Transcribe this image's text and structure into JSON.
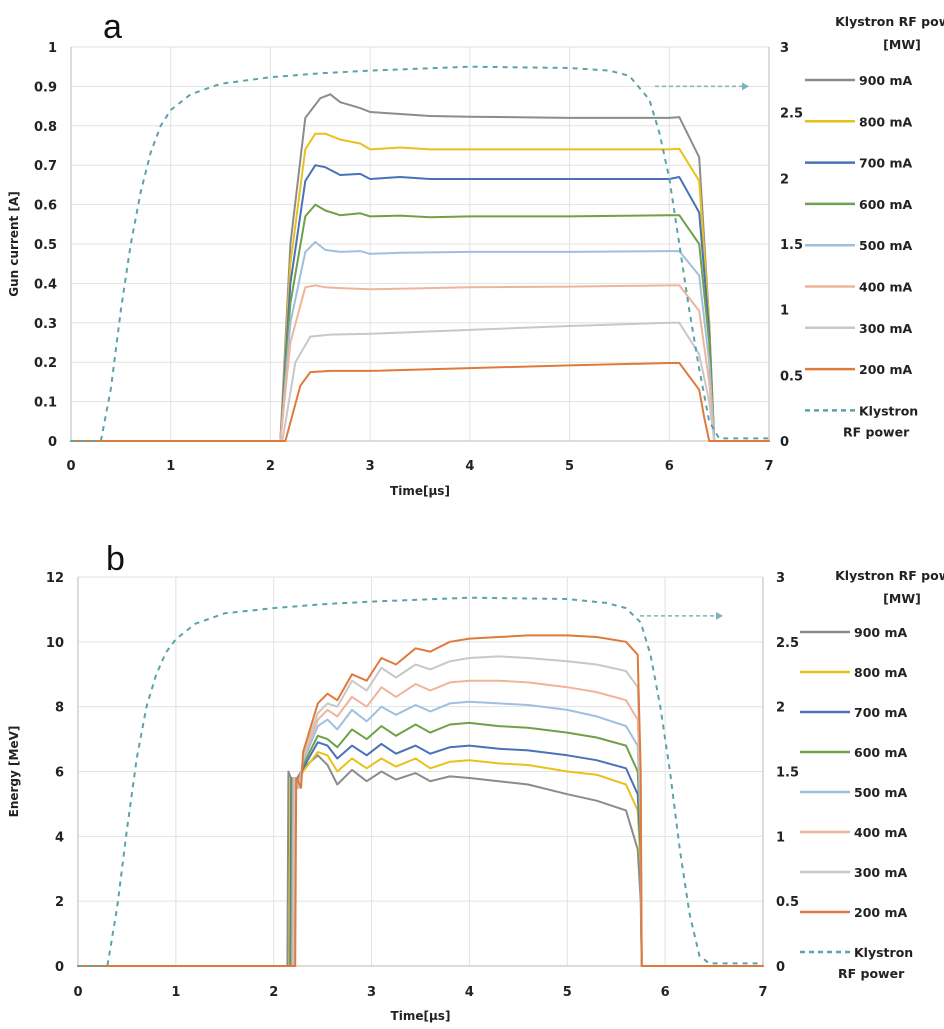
{
  "chart_data": [
    {
      "panel_label": "a",
      "type": "line",
      "title": "",
      "xlabel": "Time[μs]",
      "ylabel": "Gun current [A]",
      "y2label": "",
      "xlim": [
        0,
        7
      ],
      "ylim": [
        0,
        1
      ],
      "y2lim": [
        0,
        3
      ],
      "xticks": [
        "0",
        "1",
        "2",
        "3",
        "4",
        "5",
        "6",
        "7"
      ],
      "yticks": [
        "0",
        "0.1",
        "0.2",
        "0.3",
        "0.4",
        "0.5",
        "0.6",
        "0.7",
        "0.8",
        "0.9",
        "1"
      ],
      "y2ticks": [
        "0",
        "0.5",
        "1",
        "1.5",
        "2",
        "2.5",
        "3"
      ],
      "grid": true,
      "legend_title": "Klystron RF power [MW]",
      "legend_position": "right",
      "arrow_annotation": "dashed arrow pointing to right axis",
      "series": [
        {
          "name": "900 mA",
          "color": "#8c8c8c",
          "axis": "left",
          "x": [
            0,
            2.1,
            2.2,
            2.35,
            2.5,
            2.6,
            2.7,
            2.9,
            3.0,
            3.3,
            3.6,
            4.0,
            5.0,
            6.0,
            6.1,
            6.3,
            6.4,
            6.45,
            7
          ],
          "y": [
            0,
            0,
            0.5,
            0.82,
            0.87,
            0.88,
            0.86,
            0.845,
            0.835,
            0.83,
            0.825,
            0.823,
            0.82,
            0.82,
            0.822,
            0.72,
            0.3,
            0,
            0
          ]
        },
        {
          "name": "800 mA",
          "color": "#e8c21a",
          "axis": "left",
          "x": [
            0,
            2.1,
            2.2,
            2.35,
            2.45,
            2.55,
            2.7,
            2.9,
            3.0,
            3.3,
            3.6,
            4.0,
            5.0,
            6.0,
            6.1,
            6.3,
            6.4,
            6.45,
            7
          ],
          "y": [
            0,
            0,
            0.45,
            0.74,
            0.78,
            0.78,
            0.765,
            0.755,
            0.74,
            0.745,
            0.74,
            0.74,
            0.74,
            0.74,
            0.742,
            0.66,
            0.3,
            0,
            0
          ]
        },
        {
          "name": "700 mA",
          "color": "#4a72b8",
          "axis": "left",
          "x": [
            0,
            2.1,
            2.2,
            2.35,
            2.45,
            2.55,
            2.7,
            2.9,
            3.0,
            3.3,
            3.6,
            4.0,
            5.0,
            6.0,
            6.1,
            6.3,
            6.4,
            6.45,
            7
          ],
          "y": [
            0,
            0,
            0.4,
            0.66,
            0.7,
            0.695,
            0.675,
            0.678,
            0.665,
            0.67,
            0.665,
            0.665,
            0.665,
            0.665,
            0.67,
            0.58,
            0.28,
            0,
            0
          ]
        },
        {
          "name": "600 mA",
          "color": "#6fa04a",
          "axis": "left",
          "x": [
            0,
            2.1,
            2.2,
            2.35,
            2.45,
            2.55,
            2.7,
            2.9,
            3.0,
            3.3,
            3.6,
            4.0,
            5.0,
            6.0,
            6.1,
            6.3,
            6.4,
            6.45,
            7
          ],
          "y": [
            0,
            0,
            0.35,
            0.57,
            0.6,
            0.585,
            0.573,
            0.578,
            0.57,
            0.572,
            0.568,
            0.57,
            0.57,
            0.573,
            0.573,
            0.5,
            0.25,
            0,
            0
          ]
        },
        {
          "name": "500 mA",
          "color": "#9fbfe0",
          "axis": "left",
          "x": [
            0,
            2.1,
            2.2,
            2.35,
            2.45,
            2.55,
            2.7,
            2.9,
            3.0,
            3.3,
            4.0,
            5.0,
            6.0,
            6.1,
            6.3,
            6.4,
            6.45,
            7
          ],
          "y": [
            0,
            0,
            0.3,
            0.48,
            0.505,
            0.485,
            0.48,
            0.482,
            0.475,
            0.478,
            0.48,
            0.48,
            0.482,
            0.482,
            0.42,
            0.2,
            0,
            0
          ]
        },
        {
          "name": "400 mA",
          "color": "#f0b49a",
          "axis": "left",
          "x": [
            0,
            2.1,
            2.2,
            2.35,
            2.45,
            2.55,
            2.7,
            3.0,
            4.0,
            5.0,
            6.0,
            6.1,
            6.3,
            6.4,
            6.45,
            7
          ],
          "y": [
            0,
            0,
            0.25,
            0.39,
            0.395,
            0.39,
            0.388,
            0.385,
            0.39,
            0.392,
            0.395,
            0.395,
            0.33,
            0.15,
            0,
            0
          ]
        },
        {
          "name": "300 mA",
          "color": "#c8c8c8",
          "axis": "left",
          "x": [
            0,
            2.12,
            2.25,
            2.4,
            2.6,
            3.0,
            4.0,
            5.0,
            6.0,
            6.1,
            6.3,
            6.4,
            6.45,
            7
          ],
          "y": [
            0,
            0,
            0.2,
            0.265,
            0.27,
            0.272,
            0.282,
            0.292,
            0.3,
            0.3,
            0.22,
            0.1,
            0,
            0
          ]
        },
        {
          "name": "200 mA",
          "color": "#e07a3c",
          "axis": "left",
          "x": [
            0,
            2.15,
            2.3,
            2.4,
            2.6,
            3.0,
            4.0,
            5.0,
            6.0,
            6.1,
            6.3,
            6.35,
            6.4,
            7
          ],
          "y": [
            0,
            0,
            0.14,
            0.175,
            0.178,
            0.178,
            0.185,
            0.192,
            0.198,
            0.198,
            0.13,
            0.06,
            0,
            0
          ]
        },
        {
          "name": "Klystron RF power",
          "color": "#5aa3a8",
          "axis": "right",
          "dashed": true,
          "x": [
            0,
            0.3,
            0.4,
            0.5,
            0.6,
            0.7,
            0.8,
            0.9,
            1.0,
            1.2,
            1.5,
            2.0,
            2.5,
            3.0,
            4.0,
            5.0,
            5.4,
            5.6,
            5.8,
            5.9,
            6.0,
            6.1,
            6.2,
            6.3,
            6.4,
            6.5,
            7
          ],
          "y": [
            0,
            0,
            0.4,
            1.0,
            1.5,
            1.9,
            2.2,
            2.4,
            2.52,
            2.64,
            2.72,
            2.77,
            2.8,
            2.82,
            2.85,
            2.84,
            2.82,
            2.78,
            2.6,
            2.35,
            2.0,
            1.5,
            1.0,
            0.55,
            0.15,
            0.02,
            0.02
          ]
        }
      ]
    },
    {
      "panel_label": "b",
      "type": "line",
      "title": "",
      "xlabel": "Time[μs]",
      "ylabel": "Energy [MeV]",
      "y2label": "",
      "xlim": [
        0,
        7
      ],
      "ylim": [
        0,
        12
      ],
      "y2lim": [
        0,
        3
      ],
      "xticks": [
        "0",
        "1",
        "2",
        "3",
        "4",
        "5",
        "6",
        "7"
      ],
      "yticks": [
        "0",
        "2",
        "4",
        "6",
        "8",
        "10",
        "12"
      ],
      "y2ticks": [
        "0",
        "0.5",
        "1",
        "1.5",
        "2",
        "2.5",
        "3"
      ],
      "grid": true,
      "legend_title": "Klystron RF power [MW]",
      "legend_position": "right",
      "arrow_annotation": "dashed arrow pointing to right axis",
      "series": [
        {
          "name": "900 mA",
          "color": "#8c8c8c",
          "axis": "left",
          "x": [
            0,
            2.14,
            2.15,
            2.2,
            2.3,
            2.45,
            2.55,
            2.65,
            2.8,
            2.95,
            3.1,
            3.25,
            3.45,
            3.6,
            3.8,
            4.0,
            4.3,
            4.6,
            5.0,
            5.3,
            5.6,
            5.72,
            5.75,
            5.76,
            7
          ],
          "y": [
            0,
            0,
            6.0,
            5.6,
            6.1,
            6.5,
            6.2,
            5.6,
            6.05,
            5.7,
            6.0,
            5.75,
            5.95,
            5.7,
            5.85,
            5.8,
            5.7,
            5.6,
            5.3,
            5.1,
            4.8,
            3.6,
            2.0,
            0,
            0
          ]
        },
        {
          "name": "800 mA",
          "color": "#e8c21a",
          "axis": "left",
          "x": [
            0,
            2.16,
            2.17,
            2.22,
            2.3,
            2.45,
            2.55,
            2.65,
            2.8,
            2.95,
            3.1,
            3.25,
            3.45,
            3.6,
            3.8,
            4.0,
            4.3,
            4.6,
            5.0,
            5.3,
            5.6,
            5.72,
            5.75,
            5.76,
            7
          ],
          "y": [
            0,
            0,
            5.8,
            5.5,
            6.0,
            6.6,
            6.5,
            6.0,
            6.4,
            6.1,
            6.4,
            6.15,
            6.4,
            6.1,
            6.3,
            6.35,
            6.25,
            6.2,
            6.0,
            5.9,
            5.6,
            4.8,
            3.0,
            0,
            0
          ]
        },
        {
          "name": "700 mA",
          "color": "#4a72b8",
          "axis": "left",
          "x": [
            0,
            2.17,
            2.18,
            2.23,
            2.3,
            2.45,
            2.55,
            2.65,
            2.8,
            2.95,
            3.1,
            3.25,
            3.45,
            3.6,
            3.8,
            4.0,
            4.3,
            4.6,
            5.0,
            5.3,
            5.6,
            5.72,
            5.75,
            5.76,
            7
          ],
          "y": [
            0,
            0,
            5.8,
            5.5,
            6.1,
            6.9,
            6.8,
            6.4,
            6.8,
            6.5,
            6.85,
            6.55,
            6.8,
            6.55,
            6.75,
            6.8,
            6.7,
            6.65,
            6.5,
            6.35,
            6.1,
            5.3,
            3.5,
            0,
            0
          ]
        },
        {
          "name": "600 mA",
          "color": "#6fa04a",
          "axis": "left",
          "x": [
            0,
            2.18,
            2.19,
            2.24,
            2.3,
            2.45,
            2.55,
            2.65,
            2.8,
            2.95,
            3.1,
            3.25,
            3.45,
            3.6,
            3.8,
            4.0,
            4.3,
            4.6,
            5.0,
            5.3,
            5.6,
            5.72,
            5.75,
            5.76,
            7
          ],
          "y": [
            0,
            0,
            5.8,
            5.5,
            6.2,
            7.1,
            7.0,
            6.75,
            7.3,
            7.0,
            7.4,
            7.1,
            7.45,
            7.2,
            7.45,
            7.5,
            7.4,
            7.35,
            7.2,
            7.05,
            6.8,
            6.0,
            4.0,
            0,
            0
          ]
        },
        {
          "name": "500 mA",
          "color": "#9fbfe0",
          "axis": "left",
          "x": [
            0,
            2.19,
            2.2,
            2.25,
            2.3,
            2.45,
            2.55,
            2.65,
            2.8,
            2.95,
            3.1,
            3.25,
            3.45,
            3.6,
            3.8,
            4.0,
            4.3,
            4.6,
            5.0,
            5.3,
            5.6,
            5.72,
            5.75,
            5.76,
            7
          ],
          "y": [
            0,
            0,
            5.8,
            5.5,
            6.3,
            7.4,
            7.6,
            7.3,
            7.9,
            7.55,
            8.0,
            7.75,
            8.05,
            7.85,
            8.1,
            8.15,
            8.1,
            8.05,
            7.9,
            7.7,
            7.4,
            6.8,
            4.5,
            0,
            0
          ]
        },
        {
          "name": "400 mA",
          "color": "#f0b49a",
          "axis": "left",
          "x": [
            0,
            2.2,
            2.21,
            2.26,
            2.3,
            2.45,
            2.55,
            2.65,
            2.8,
            2.95,
            3.1,
            3.25,
            3.45,
            3.6,
            3.8,
            4.0,
            4.3,
            4.6,
            5.0,
            5.3,
            5.6,
            5.72,
            5.75,
            5.76,
            7
          ],
          "y": [
            0,
            0,
            5.8,
            5.5,
            6.4,
            7.6,
            7.9,
            7.7,
            8.3,
            8.0,
            8.6,
            8.3,
            8.7,
            8.5,
            8.75,
            8.8,
            8.8,
            8.75,
            8.6,
            8.45,
            8.2,
            7.6,
            5.0,
            0,
            0
          ]
        },
        {
          "name": "300 mA",
          "color": "#c8c8c8",
          "axis": "left",
          "x": [
            0,
            2.21,
            2.22,
            2.27,
            2.3,
            2.45,
            2.55,
            2.65,
            2.8,
            2.95,
            3.1,
            3.25,
            3.45,
            3.6,
            3.8,
            4.0,
            4.3,
            4.6,
            5.0,
            5.3,
            5.6,
            5.72,
            5.75,
            5.76,
            7
          ],
          "y": [
            0,
            0,
            5.8,
            5.5,
            6.5,
            7.8,
            8.1,
            8.0,
            8.8,
            8.5,
            9.2,
            8.9,
            9.3,
            9.15,
            9.4,
            9.5,
            9.55,
            9.5,
            9.4,
            9.3,
            9.1,
            8.6,
            5.5,
            0,
            0
          ]
        },
        {
          "name": "200 mA",
          "color": "#e07a3c",
          "axis": "left",
          "x": [
            0,
            2.22,
            2.23,
            2.28,
            2.3,
            2.45,
            2.55,
            2.65,
            2.8,
            2.95,
            3.1,
            3.25,
            3.45,
            3.6,
            3.8,
            4.0,
            4.3,
            4.6,
            5.0,
            5.3,
            5.6,
            5.72,
            5.75,
            5.76,
            7
          ],
          "y": [
            0,
            0,
            5.8,
            5.5,
            6.6,
            8.1,
            8.4,
            8.2,
            9.0,
            8.8,
            9.5,
            9.3,
            9.8,
            9.7,
            10.0,
            10.1,
            10.15,
            10.2,
            10.2,
            10.15,
            10.0,
            9.6,
            6.0,
            0,
            0
          ]
        },
        {
          "name": "Klystron RF power",
          "color": "#5aa3a8",
          "axis": "right",
          "dashed": true,
          "x": [
            0,
            0.3,
            0.4,
            0.5,
            0.6,
            0.7,
            0.8,
            0.9,
            1.0,
            1.2,
            1.5,
            2.0,
            2.5,
            3.0,
            4.0,
            5.0,
            5.4,
            5.6,
            5.75,
            5.85,
            5.95,
            6.05,
            6.15,
            6.25,
            6.35,
            6.45,
            7
          ],
          "y": [
            0,
            0,
            0.45,
            1.05,
            1.6,
            2.0,
            2.25,
            2.42,
            2.52,
            2.64,
            2.72,
            2.76,
            2.79,
            2.81,
            2.84,
            2.83,
            2.8,
            2.76,
            2.65,
            2.4,
            2.0,
            1.5,
            0.9,
            0.4,
            0.08,
            0.02,
            0.02
          ]
        }
      ]
    }
  ]
}
